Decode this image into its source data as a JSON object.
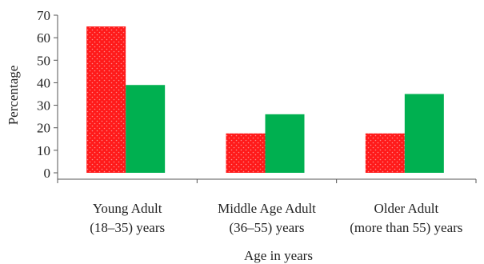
{
  "chart_data": {
    "type": "bar",
    "xlabel": "Age in years",
    "ylabel": "Percentage",
    "ylim": [
      0,
      70
    ],
    "yticks": [
      0,
      10,
      20,
      30,
      40,
      50,
      60,
      70
    ],
    "categories": [
      [
        "Young Adult",
        "(18–35) years"
      ],
      [
        "Middle Age Adult",
        "(36–55) years"
      ],
      [
        "Older Adult",
        "(more than 55) years"
      ]
    ],
    "series": [
      {
        "values": [
          65,
          17.5,
          17.5
        ],
        "color": "#ff1a1a",
        "pattern": "dotted"
      },
      {
        "values": [
          39,
          26,
          35
        ],
        "color": "#00b050"
      }
    ],
    "grid": false,
    "legend": "none"
  }
}
